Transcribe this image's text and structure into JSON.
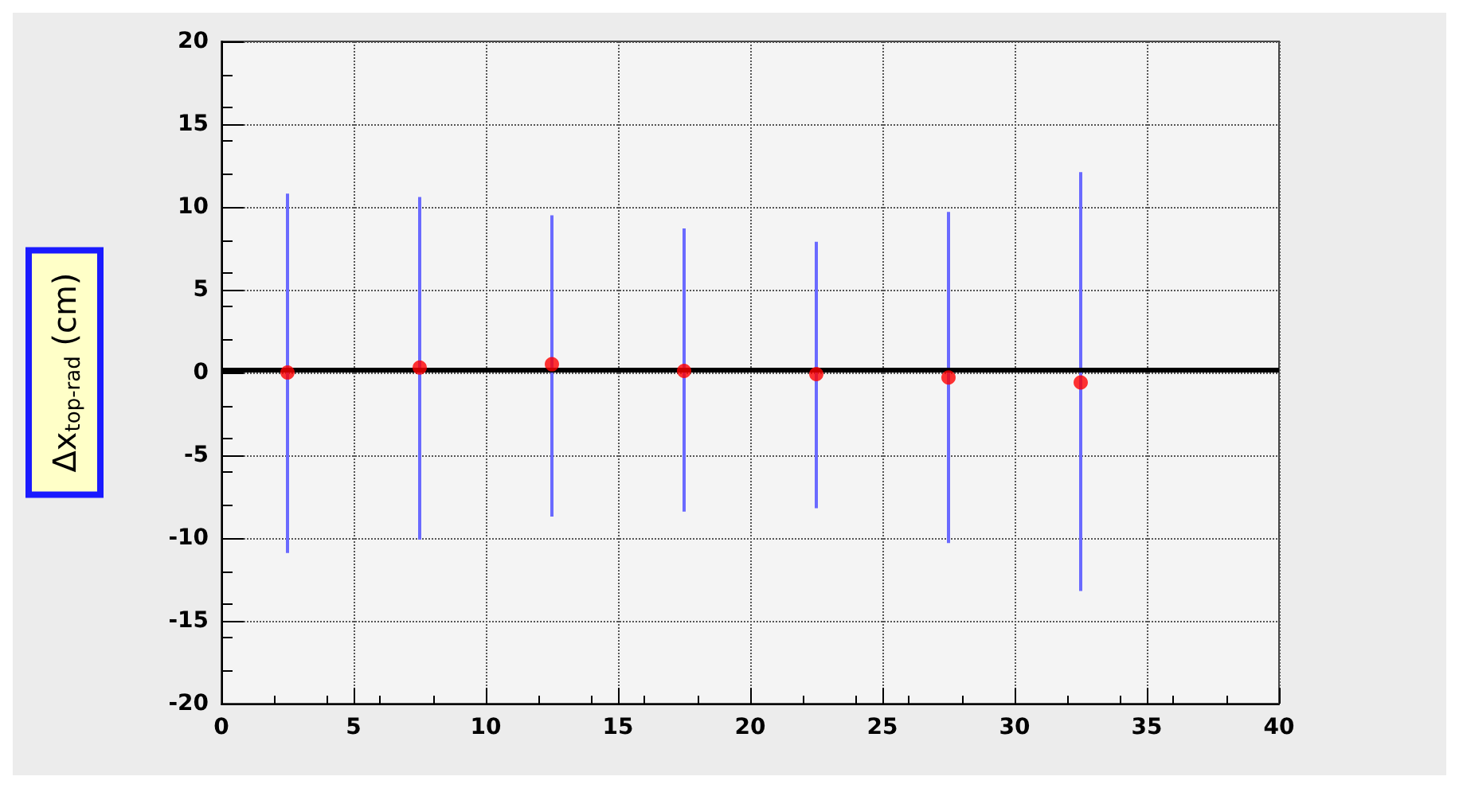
{
  "chart_data": {
    "type": "scatter",
    "ylabel": "Δx$_{top-rad}$ (cm)",
    "x": [
      2.5,
      7.5,
      12.5,
      17.5,
      22.5,
      27.5,
      32.5
    ],
    "series": [
      {
        "color": "#ff0000",
        "values": [
          0,
          0.3,
          0.5,
          0.1,
          -0.1,
          -0.3,
          -0.6
        ],
        "errors": [
          [
            -10.9,
            10.8
          ],
          [
            -10.1,
            10.6
          ],
          [
            -8.7,
            9.5
          ],
          [
            -8.4,
            8.7
          ],
          [
            -8.2,
            7.9
          ],
          [
            -10.3,
            9.7
          ],
          [
            -13.2,
            12.1
          ]
        ]
      }
    ],
    "xlim": [
      0,
      40
    ],
    "xticks": [
      0,
      5,
      10,
      15,
      20,
      25,
      30,
      35,
      40
    ],
    "ylim": [
      -20,
      20
    ],
    "yticks": [
      -20,
      -15,
      -10,
      -5,
      0,
      5,
      10,
      15,
      20
    ],
    "ref_lines": [
      {
        "axis": "y",
        "value": 0.2,
        "color": "#000000"
      }
    ],
    "grid": true,
    "marker": "circle"
  }
}
